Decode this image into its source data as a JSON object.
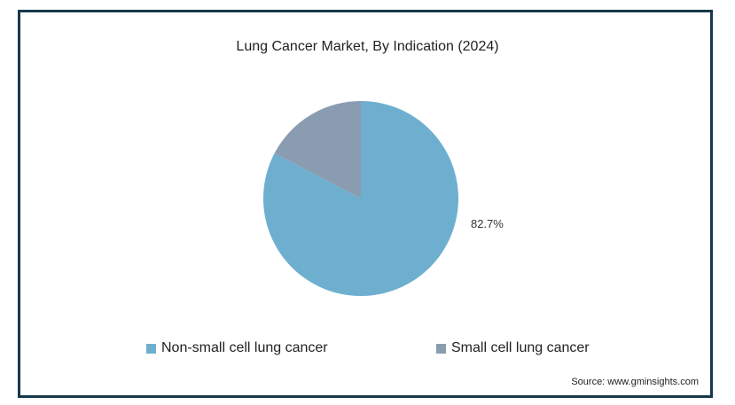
{
  "chart_data": {
    "type": "pie",
    "title": "Lung Cancer Market, By Indication (2024)",
    "categories": [
      "Non-small cell lung cancer",
      "Small cell lung cancer"
    ],
    "values": [
      82.7,
      17.3
    ],
    "data_labels": [
      "82.7%",
      ""
    ],
    "colors": [
      "#6eafd0",
      "#8a9cb0"
    ],
    "legend_position": "bottom"
  },
  "source": "Source: www.gminsights.com",
  "colors": {
    "frame_border": "#17394a"
  }
}
